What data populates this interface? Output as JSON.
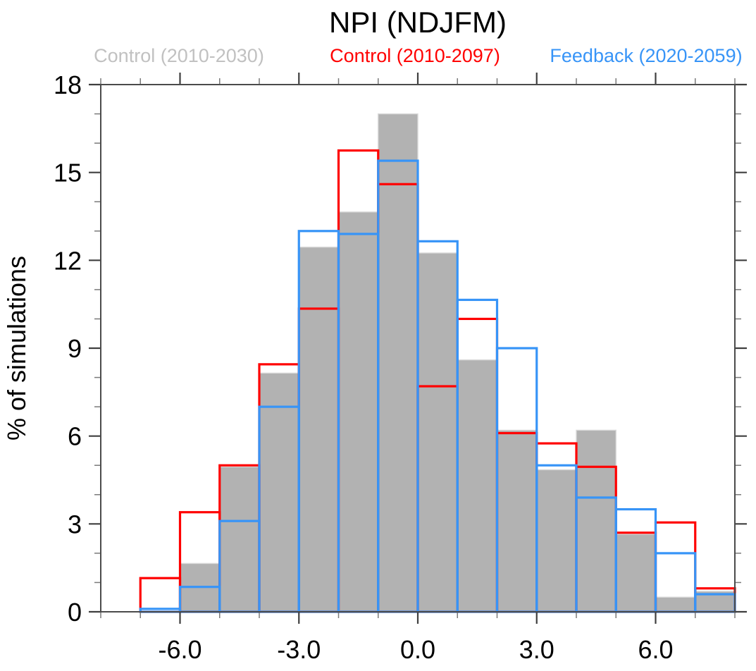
{
  "title": "NPI (NDJFM)",
  "ylabel": "% of simulations",
  "colors": {
    "axis": "#4b4b4b",
    "major_tick": "#3f3f3f",
    "minor_tick": "#7a7a7a",
    "text": "#000000",
    "background": "#ffffff"
  },
  "legend": [
    {
      "label": "Control (2010-2030)",
      "color": "#c1c1c1"
    },
    {
      "label": "Control (2010-2097)",
      "color": "#ff0000"
    },
    {
      "label": "Feedback (2020-2059)",
      "color": "#3794f7"
    }
  ],
  "chart_data": {
    "type": "bar",
    "subtype": "overlaid-histogram",
    "title": "NPI (NDJFM)",
    "xlabel": "",
    "ylabel": "% of simulations",
    "grid": false,
    "legend_position": "top",
    "xlim": [
      -8,
      8
    ],
    "ylim": [
      0,
      18
    ],
    "bin_edges": [
      -8,
      -7,
      -6,
      -5,
      -4,
      -3,
      -2,
      -1,
      0,
      1,
      2,
      3,
      4,
      5,
      6,
      7,
      8
    ],
    "series": [
      {
        "name": "Control (2010-2030)",
        "style": "filled",
        "color": "#b2b2b2",
        "edge_color": "#d8d8d8",
        "legend_color": "#c1c1c1",
        "values": [
          0,
          0,
          1.65,
          4.95,
          8.15,
          12.45,
          13.65,
          17.0,
          12.25,
          8.6,
          6.2,
          4.85,
          6.2,
          2.65,
          0.5,
          0.7
        ]
      },
      {
        "name": "Control (2010-2097)",
        "style": "outline",
        "color": "#ff0000",
        "legend_color": "#ff0000",
        "values": [
          0,
          1.15,
          3.4,
          5.0,
          8.45,
          10.35,
          15.75,
          14.6,
          7.7,
          10.0,
          6.1,
          5.75,
          4.95,
          2.7,
          3.05,
          0.8
        ]
      },
      {
        "name": "Feedback (2020-2059)",
        "style": "outline",
        "color": "#3794f7",
        "legend_color": "#3794f7",
        "values": [
          0,
          0.1,
          0.85,
          3.1,
          7.0,
          13.0,
          12.9,
          15.4,
          12.65,
          10.65,
          9.0,
          5.0,
          3.9,
          3.5,
          2.0,
          0.6
        ]
      }
    ],
    "x_ticks": {
      "major": [
        -6,
        -3,
        0,
        3,
        6
      ],
      "labels": [
        "-6.0",
        "-3.0",
        "0.0",
        "3.0",
        "6.0"
      ],
      "minor_step": 1
    },
    "y_ticks": {
      "major": [
        0,
        3,
        6,
        9,
        12,
        15,
        18
      ],
      "labels": [
        "0",
        "3",
        "6",
        "9",
        "12",
        "15",
        "18"
      ],
      "minor_step": 1
    }
  }
}
